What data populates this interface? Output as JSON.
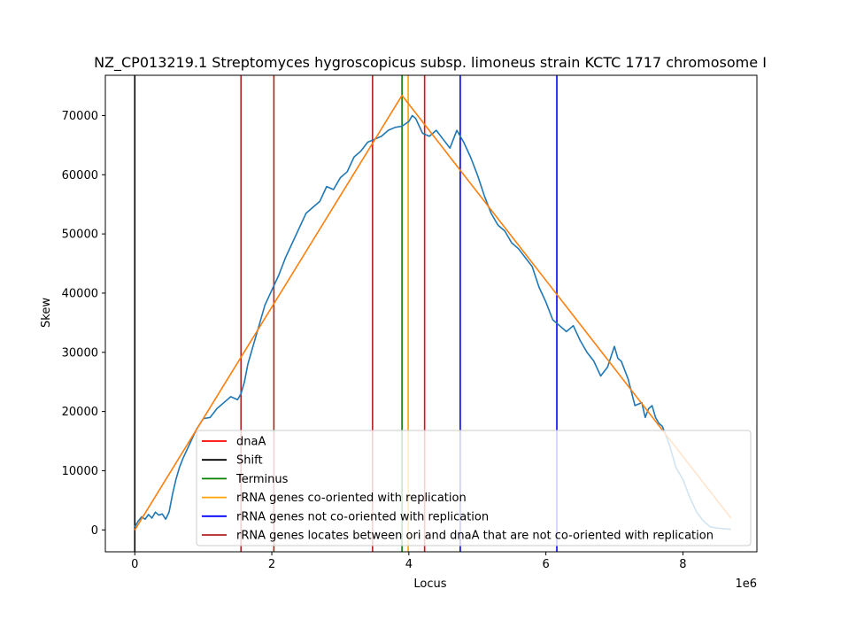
{
  "chart_data": {
    "type": "line",
    "title": "NZ_CP013219.1 Streptomyces hygroscopicus subsp. limoneus strain KCTC 1717 chromosome I",
    "xlabel": "Locus",
    "ylabel": "Skew",
    "x_offset_label": "1e6",
    "xlim": [
      -0.43,
      9.08
    ],
    "ylim": [
      -3700,
      76800
    ],
    "x_ticks": [
      0,
      2,
      4,
      6,
      8
    ],
    "x_tick_labels": [
      "0",
      "2",
      "4",
      "6",
      "8"
    ],
    "y_ticks": [
      0,
      10000,
      20000,
      30000,
      40000,
      50000,
      60000,
      70000
    ],
    "y_tick_labels": [
      "0",
      "10000",
      "20000",
      "30000",
      "40000",
      "50000",
      "60000",
      "70000"
    ],
    "grid": false,
    "legend_position": "lower-right",
    "colors": {
      "skew": "#1f77b4",
      "fit": "#ff7f0e",
      "dnaA": "#ff0000",
      "shift": "#000000",
      "terminus": "#008000",
      "rrna_co": "#ffa500",
      "rrna_not_co": "#0000ff",
      "rrna_between": "#b22222"
    },
    "legend": [
      {
        "label": "dnaA",
        "key": "dnaA"
      },
      {
        "label": "Shift",
        "key": "shift"
      },
      {
        "label": "Terminus",
        "key": "terminus"
      },
      {
        "label": "rRNA genes co-oriented with replication",
        "key": "rrna_co"
      },
      {
        "label": "rRNA genes not co-oriented with replication",
        "key": "rrna_not_co"
      },
      {
        "label": "rRNA genes locates between ori and dnaA that are not co-oriented with replication",
        "key": "rrna_between"
      }
    ],
    "vertical_lines": [
      {
        "key": "shift",
        "x": 0.0
      },
      {
        "key": "rrna_between",
        "x": 1.55
      },
      {
        "key": "rrna_between",
        "x": 2.03
      },
      {
        "key": "rrna_between",
        "x": 3.47
      },
      {
        "key": "terminus",
        "x": 3.9
      },
      {
        "key": "rrna_co",
        "x": 3.99
      },
      {
        "key": "dnaA",
        "x": 4.23
      },
      {
        "key": "rrna_not_co",
        "x": 4.75
      },
      {
        "key": "rrna_not_co",
        "x": 6.16
      }
    ],
    "series": [
      {
        "key": "skew",
        "x": [
          0.0,
          0.05,
          0.1,
          0.15,
          0.2,
          0.25,
          0.3,
          0.35,
          0.4,
          0.45,
          0.5,
          0.55,
          0.6,
          0.65,
          0.7,
          0.8,
          0.9,
          1.0,
          1.1,
          1.2,
          1.3,
          1.4,
          1.5,
          1.55,
          1.6,
          1.65,
          1.7,
          1.8,
          1.9,
          2.0,
          2.1,
          2.2,
          2.3,
          2.4,
          2.5,
          2.6,
          2.7,
          2.8,
          2.9,
          3.0,
          3.1,
          3.2,
          3.3,
          3.4,
          3.5,
          3.6,
          3.7,
          3.8,
          3.9,
          4.0,
          4.05,
          4.1,
          4.2,
          4.3,
          4.4,
          4.5,
          4.6,
          4.7,
          4.8,
          4.9,
          5.0,
          5.1,
          5.2,
          5.3,
          5.4,
          5.5,
          5.6,
          5.7,
          5.8,
          5.9,
          6.0,
          6.1,
          6.2,
          6.3,
          6.4,
          6.5,
          6.6,
          6.7,
          6.8,
          6.9,
          7.0,
          7.05,
          7.1,
          7.2,
          7.3,
          7.4,
          7.45,
          7.5,
          7.55,
          7.6,
          7.65,
          7.7,
          7.8,
          7.9,
          8.0,
          8.1,
          8.2,
          8.3,
          8.4,
          8.5,
          8.6,
          8.7
        ],
        "y": [
          500,
          1500,
          2200,
          1800,
          2600,
          2000,
          3000,
          2500,
          2700,
          1800,
          3000,
          6000,
          8500,
          10500,
          12000,
          14500,
          17000,
          18800,
          19000,
          20500,
          21500,
          22500,
          22000,
          23000,
          25000,
          28000,
          30000,
          34000,
          38000,
          40500,
          43000,
          46000,
          48500,
          51000,
          53500,
          54500,
          55500,
          58000,
          57500,
          59500,
          60500,
          63000,
          64000,
          65500,
          66000,
          66500,
          67500,
          68000,
          68200,
          69000,
          70000,
          69500,
          67000,
          66500,
          67500,
          66000,
          64500,
          67500,
          65500,
          63000,
          60000,
          56500,
          53500,
          51500,
          50500,
          48500,
          47500,
          46000,
          44500,
          41000,
          38500,
          35500,
          34500,
          33500,
          34500,
          32000,
          30000,
          28500,
          26000,
          27500,
          31000,
          29000,
          28500,
          25500,
          21000,
          21500,
          19000,
          20500,
          21000,
          19000,
          18000,
          17500,
          14500,
          10500,
          8500,
          5500,
          3000,
          1500,
          500,
          300,
          200,
          100
        ]
      },
      {
        "key": "fit",
        "x": [
          0.0,
          3.9,
          8.7
        ],
        "y": [
          0,
          73400,
          2000
        ]
      }
    ]
  }
}
